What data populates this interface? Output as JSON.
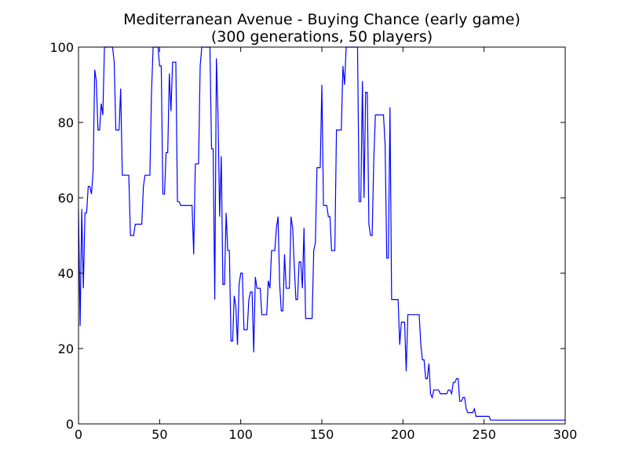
{
  "chart_data": {
    "type": "line",
    "title": "Mediterranean Avenue - Buying Chance (early game)",
    "subtitle": "(300 generations, 50 players)",
    "xlabel": "",
    "ylabel": "",
    "xlim": [
      0,
      300
    ],
    "ylim": [
      0,
      100
    ],
    "grid": false,
    "x_ticks": [
      0,
      50,
      100,
      150,
      200,
      250,
      300
    ],
    "y_ticks": [
      0,
      20,
      40,
      60,
      80,
      100
    ],
    "line_color": "#0000ff",
    "series": [
      {
        "name": "buying chance",
        "points": [
          [
            0,
            57
          ],
          [
            1,
            26
          ],
          [
            2,
            57
          ],
          [
            3,
            36
          ],
          [
            4,
            56
          ],
          [
            5,
            56
          ],
          [
            6,
            63
          ],
          [
            7,
            63
          ],
          [
            8,
            61
          ],
          [
            9,
            67
          ],
          [
            10,
            94
          ],
          [
            11,
            91
          ],
          [
            12,
            78
          ],
          [
            13,
            78
          ],
          [
            14,
            85
          ],
          [
            15,
            82
          ],
          [
            16,
            100
          ],
          [
            17,
            100
          ],
          [
            18,
            100
          ],
          [
            19,
            100
          ],
          [
            20,
            100
          ],
          [
            21,
            100
          ],
          [
            22,
            96
          ],
          [
            23,
            78
          ],
          [
            24,
            78
          ],
          [
            25,
            78
          ],
          [
            26,
            89
          ],
          [
            27,
            66
          ],
          [
            28,
            66
          ],
          [
            29,
            66
          ],
          [
            30,
            66
          ],
          [
            31,
            66
          ],
          [
            32,
            50
          ],
          [
            33,
            50
          ],
          [
            34,
            50
          ],
          [
            35,
            53
          ],
          [
            36,
            53
          ],
          [
            37,
            53
          ],
          [
            38,
            53
          ],
          [
            39,
            53
          ],
          [
            40,
            63
          ],
          [
            41,
            66
          ],
          [
            42,
            66
          ],
          [
            43,
            66
          ],
          [
            44,
            66
          ],
          [
            45,
            88
          ],
          [
            46,
            100
          ],
          [
            47,
            100
          ],
          [
            48,
            100
          ],
          [
            49,
            100
          ],
          [
            50,
            95
          ],
          [
            51,
            95
          ],
          [
            52,
            61
          ],
          [
            53,
            61
          ],
          [
            54,
            72
          ],
          [
            55,
            72
          ],
          [
            56,
            93
          ],
          [
            57,
            83
          ],
          [
            58,
            96
          ],
          [
            59,
            96
          ],
          [
            60,
            96
          ],
          [
            61,
            59
          ],
          [
            62,
            59
          ],
          [
            63,
            58
          ],
          [
            64,
            58
          ],
          [
            65,
            58
          ],
          [
            66,
            58
          ],
          [
            67,
            58
          ],
          [
            68,
            58
          ],
          [
            69,
            58
          ],
          [
            70,
            58
          ],
          [
            71,
            45
          ],
          [
            72,
            69
          ],
          [
            73,
            69
          ],
          [
            74,
            69
          ],
          [
            75,
            95
          ],
          [
            76,
            100
          ],
          [
            77,
            100
          ],
          [
            78,
            100
          ],
          [
            79,
            100
          ],
          [
            80,
            100
          ],
          [
            81,
            100
          ],
          [
            82,
            73
          ],
          [
            83,
            73
          ],
          [
            84,
            33
          ],
          [
            85,
            97
          ],
          [
            86,
            82
          ],
          [
            87,
            55
          ],
          [
            88,
            71
          ],
          [
            89,
            37
          ],
          [
            90,
            37
          ],
          [
            91,
            56
          ],
          [
            92,
            46
          ],
          [
            93,
            46
          ],
          [
            94,
            22
          ],
          [
            95,
            22
          ],
          [
            96,
            34
          ],
          [
            97,
            31
          ],
          [
            98,
            21
          ],
          [
            99,
            37
          ],
          [
            100,
            40
          ],
          [
            101,
            40
          ],
          [
            102,
            25
          ],
          [
            103,
            25
          ],
          [
            104,
            25
          ],
          [
            105,
            33
          ],
          [
            106,
            35
          ],
          [
            107,
            35
          ],
          [
            108,
            19
          ],
          [
            109,
            39
          ],
          [
            110,
            36
          ],
          [
            111,
            36
          ],
          [
            112,
            36
          ],
          [
            113,
            29
          ],
          [
            114,
            29
          ],
          [
            115,
            29
          ],
          [
            116,
            29
          ],
          [
            117,
            38
          ],
          [
            118,
            36
          ],
          [
            119,
            46
          ],
          [
            120,
            46
          ],
          [
            121,
            46
          ],
          [
            122,
            52
          ],
          [
            123,
            55
          ],
          [
            124,
            37
          ],
          [
            125,
            30
          ],
          [
            126,
            30
          ],
          [
            127,
            45
          ],
          [
            128,
            36
          ],
          [
            129,
            36
          ],
          [
            130,
            36
          ],
          [
            131,
            55
          ],
          [
            132,
            52
          ],
          [
            133,
            42
          ],
          [
            134,
            33
          ],
          [
            135,
            33
          ],
          [
            136,
            43
          ],
          [
            137,
            43
          ],
          [
            138,
            36
          ],
          [
            139,
            52
          ],
          [
            140,
            28
          ],
          [
            141,
            28
          ],
          [
            142,
            28
          ],
          [
            143,
            28
          ],
          [
            144,
            28
          ],
          [
            145,
            46
          ],
          [
            146,
            48
          ],
          [
            147,
            68
          ],
          [
            148,
            68
          ],
          [
            149,
            68
          ],
          [
            150,
            90
          ],
          [
            151,
            58
          ],
          [
            152,
            58
          ],
          [
            153,
            58
          ],
          [
            154,
            55
          ],
          [
            155,
            55
          ],
          [
            156,
            46
          ],
          [
            157,
            46
          ],
          [
            158,
            46
          ],
          [
            159,
            78
          ],
          [
            160,
            78
          ],
          [
            161,
            78
          ],
          [
            162,
            78
          ],
          [
            163,
            95
          ],
          [
            164,
            90
          ],
          [
            165,
            100
          ],
          [
            166,
            100
          ],
          [
            167,
            100
          ],
          [
            168,
            100
          ],
          [
            169,
            100
          ],
          [
            170,
            100
          ],
          [
            171,
            100
          ],
          [
            172,
            100
          ],
          [
            173,
            59
          ],
          [
            174,
            59
          ],
          [
            175,
            91
          ],
          [
            176,
            60
          ],
          [
            177,
            88
          ],
          [
            178,
            88
          ],
          [
            179,
            53
          ],
          [
            180,
            50
          ],
          [
            181,
            50
          ],
          [
            182,
            70
          ],
          [
            183,
            82
          ],
          [
            184,
            82
          ],
          [
            185,
            82
          ],
          [
            186,
            82
          ],
          [
            187,
            82
          ],
          [
            188,
            82
          ],
          [
            189,
            74
          ],
          [
            190,
            44
          ],
          [
            191,
            44
          ],
          [
            192,
            84
          ],
          [
            193,
            33
          ],
          [
            194,
            33
          ],
          [
            195,
            33
          ],
          [
            196,
            33
          ],
          [
            197,
            33
          ],
          [
            198,
            21
          ],
          [
            199,
            27
          ],
          [
            200,
            27
          ],
          [
            201,
            27
          ],
          [
            202,
            14
          ],
          [
            203,
            29
          ],
          [
            204,
            29
          ],
          [
            205,
            29
          ],
          [
            206,
            29
          ],
          [
            207,
            29
          ],
          [
            208,
            29
          ],
          [
            209,
            29
          ],
          [
            210,
            29
          ],
          [
            211,
            21
          ],
          [
            212,
            17
          ],
          [
            213,
            17
          ],
          [
            214,
            12
          ],
          [
            215,
            12
          ],
          [
            216,
            16
          ],
          [
            217,
            8
          ],
          [
            218,
            7
          ],
          [
            219,
            9
          ],
          [
            220,
            9
          ],
          [
            221,
            9
          ],
          [
            222,
            9
          ],
          [
            223,
            8
          ],
          [
            224,
            8
          ],
          [
            225,
            8
          ],
          [
            226,
            8
          ],
          [
            227,
            8
          ],
          [
            228,
            9
          ],
          [
            229,
            9
          ],
          [
            230,
            8
          ],
          [
            231,
            11
          ],
          [
            232,
            11
          ],
          [
            233,
            12
          ],
          [
            234,
            12
          ],
          [
            235,
            6
          ],
          [
            236,
            6
          ],
          [
            237,
            7
          ],
          [
            238,
            7
          ],
          [
            239,
            4
          ],
          [
            240,
            3
          ],
          [
            241,
            3
          ],
          [
            242,
            3
          ],
          [
            243,
            3
          ],
          [
            244,
            4
          ],
          [
            245,
            2
          ],
          [
            246,
            2
          ],
          [
            247,
            2
          ],
          [
            248,
            2
          ],
          [
            249,
            2
          ],
          [
            250,
            2
          ],
          [
            251,
            2
          ],
          [
            252,
            2
          ],
          [
            253,
            2
          ],
          [
            254,
            1
          ],
          [
            255,
            1
          ],
          [
            300,
            1
          ]
        ]
      }
    ]
  }
}
